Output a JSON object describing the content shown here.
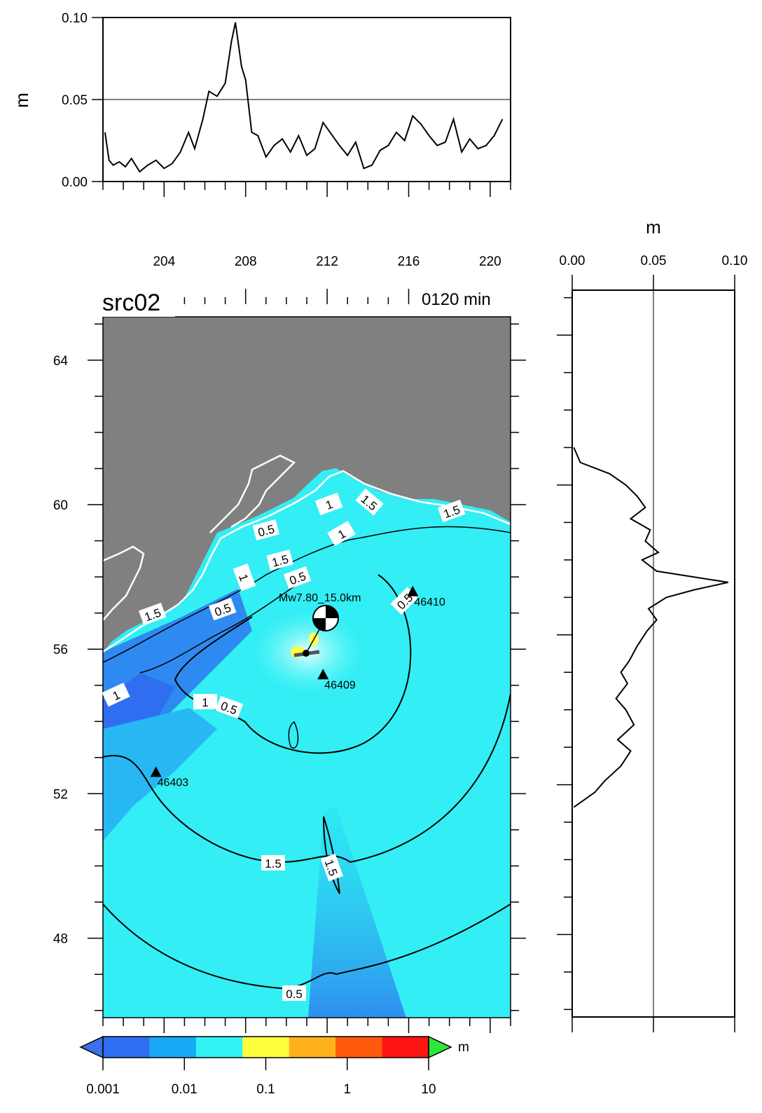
{
  "chart_data": [
    {
      "id": "top",
      "type": "line",
      "ylabel": "m",
      "ylim": [
        0,
        0.1
      ],
      "yticks": [
        "0.00",
        "0.05",
        "0.10"
      ],
      "xlim": [
        201,
        221
      ],
      "grid_y": [
        0.05
      ],
      "series": [
        {
          "x": [
            201.1,
            201.3,
            201.5,
            201.8,
            202.1,
            202.4,
            202.8,
            203.2,
            203.6,
            204.0,
            204.4,
            204.8,
            205.2,
            205.5,
            205.9,
            206.2,
            206.6,
            207.0,
            207.3,
            207.5,
            207.8,
            208.0,
            208.3,
            208.6,
            209.0,
            209.4,
            209.8,
            210.2,
            210.6,
            211.0,
            211.4,
            211.8,
            212.2,
            212.6,
            213.0,
            213.4,
            213.8,
            214.2,
            214.6,
            215.0,
            215.4,
            215.8,
            216.2,
            216.6,
            217.0,
            217.4,
            217.8,
            218.2,
            218.6,
            219.0,
            219.4,
            219.8,
            220.2,
            220.6
          ],
          "y": [
            0.03,
            0.013,
            0.01,
            0.012,
            0.009,
            0.014,
            0.006,
            0.01,
            0.013,
            0.008,
            0.011,
            0.018,
            0.03,
            0.02,
            0.038,
            0.055,
            0.052,
            0.06,
            0.085,
            0.097,
            0.07,
            0.062,
            0.03,
            0.028,
            0.015,
            0.022,
            0.026,
            0.018,
            0.028,
            0.016,
            0.02,
            0.036,
            0.029,
            0.022,
            0.016,
            0.024,
            0.008,
            0.01,
            0.019,
            0.022,
            0.03,
            0.025,
            0.04,
            0.035,
            0.028,
            0.022,
            0.024,
            0.038,
            0.018,
            0.026,
            0.02,
            0.022,
            0.028,
            0.038
          ]
        }
      ]
    },
    {
      "id": "right",
      "type": "line",
      "xlabel": "m",
      "xlim": [
        0,
        0.1
      ],
      "xticks": [
        "0.00",
        "0.05",
        "0.10"
      ],
      "ylim": [
        45.8,
        65.2
      ],
      "grid_x": [
        0.05
      ],
      "series": [
        {
          "lat": [
            51.4,
            51.8,
            52.1,
            52.5,
            52.9,
            53.2,
            53.6,
            54.0,
            54.3,
            54.7,
            55.0,
            55.3,
            55.7,
            56.1,
            56.4,
            56.7,
            57.0,
            57.2,
            57.4,
            57.7,
            58.0,
            58.2,
            58.5,
            58.8,
            59.1,
            59.4,
            59.7,
            60.0,
            60.3,
            60.6,
            61.0
          ],
          "value": [
            0.001,
            0.014,
            0.02,
            0.03,
            0.036,
            0.028,
            0.038,
            0.033,
            0.027,
            0.034,
            0.03,
            0.035,
            0.04,
            0.046,
            0.052,
            0.047,
            0.058,
            0.075,
            0.096,
            0.052,
            0.043,
            0.053,
            0.045,
            0.048,
            0.036,
            0.045,
            0.04,
            0.033,
            0.023,
            0.005,
            0.001
          ]
        }
      ]
    },
    {
      "id": "map",
      "type": "heatmap",
      "title": "src02",
      "time_label": "0120 min",
      "xticks": [
        "204",
        "208",
        "212",
        "216",
        "220"
      ],
      "yticks": [
        "64",
        "60",
        "56",
        "52",
        "48"
      ],
      "xlim": [
        201,
        221
      ],
      "ylim": [
        45.8,
        65.2
      ],
      "contour_labels": [
        "0.5",
        "1.5",
        "1",
        "1.5",
        "1.5",
        "0.5",
        "1.5",
        "0.5",
        "1",
        "1",
        "0.5",
        "0.5",
        "1",
        "1.5",
        "1.5",
        "0.5",
        "1"
      ],
      "epicenter_label": "Mw7.80_15.0km",
      "stations": [
        {
          "name": "46410",
          "lon": 216.2,
          "lat": 57.6
        },
        {
          "name": "46409",
          "lon": 211.8,
          "lat": 55.3
        },
        {
          "name": "46403",
          "lon": 203.6,
          "lat": 52.6
        }
      ],
      "colorbar": {
        "unit": "m",
        "ticks": [
          "0.001",
          "0.01",
          "0.1",
          "1",
          "10"
        ],
        "colors": [
          "#2f6ef0",
          "#18a8f4",
          "#33f2f6",
          "#ffff40",
          "#ffb21e",
          "#ff5a0c",
          "#ff1414"
        ],
        "over_color": "#2ee63a",
        "under_color": "#3a70e8"
      },
      "land_color": "#808080",
      "sea_color": "#33eef4"
    }
  ]
}
